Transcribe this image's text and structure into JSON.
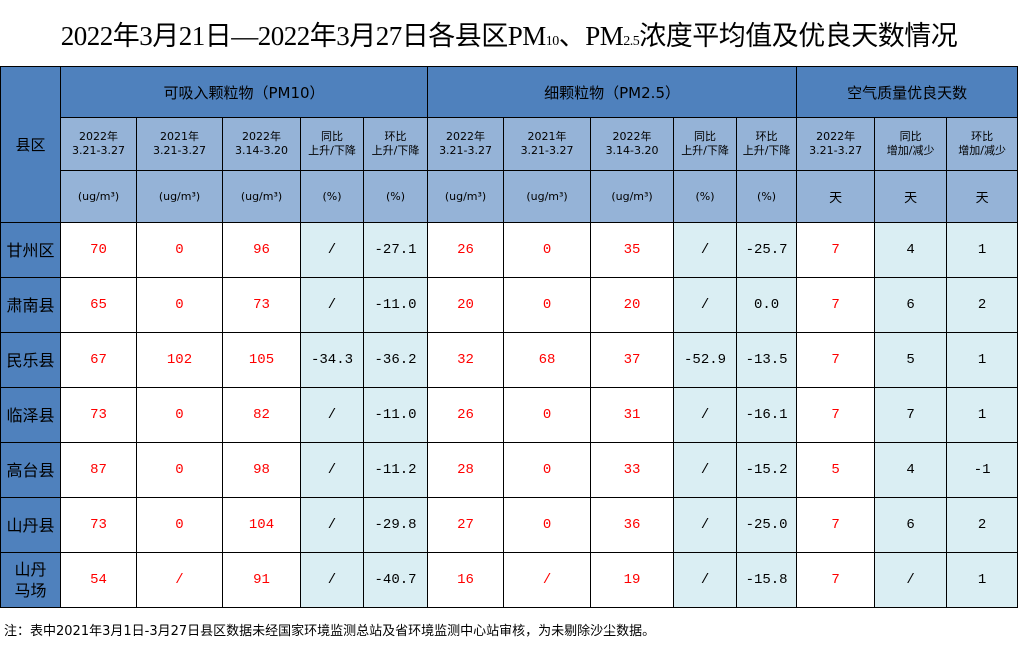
{
  "title": {
    "pre": "2022年3月21日—2022年3月27日各县区PM",
    "sub1": "10",
    "mid": "、PM",
    "sub2": "2.5",
    "post": "浓度平均值及优良天数情况"
  },
  "header": {
    "county": "县区",
    "groups": [
      "可吸入颗粒物（PM10）",
      "细颗粒物（PM2.5）",
      "空气质量优良天数"
    ],
    "columns": [
      {
        "l1": "2022年",
        "l2": "3.21-3.27",
        "unit": "(ug/m³)"
      },
      {
        "l1": "2021年",
        "l2": "3.21-3.27",
        "unit": "(ug/m³)"
      },
      {
        "l1": "2022年",
        "l2": "3.14-3.20",
        "unit": "(ug/m³)"
      },
      {
        "l1": "同比",
        "l2": "上升/下降",
        "unit": "(%)"
      },
      {
        "l1": "环比",
        "l2": "上升/下降",
        "unit": "(%)"
      },
      {
        "l1": "2022年",
        "l2": "3.21-3.27",
        "unit": "(ug/m³)"
      },
      {
        "l1": "2021年",
        "l2": "3.21-3.27",
        "unit": "(ug/m³)"
      },
      {
        "l1": "2022年",
        "l2": "3.14-3.20",
        "unit": "(ug/m³)"
      },
      {
        "l1": "同比",
        "l2": "上升/下降",
        "unit": "(%)"
      },
      {
        "l1": "环比",
        "l2": "上升/下降",
        "unit": "(%)"
      },
      {
        "l1": "2022年",
        "l2": "3.21-3.27",
        "unit": "天"
      },
      {
        "l1": "同比",
        "l2": "增加/减少",
        "unit": "天"
      },
      {
        "l1": "环比",
        "l2": "增加/减少",
        "unit": "天"
      }
    ]
  },
  "rows": [
    {
      "county": "甘州区",
      "values": [
        "70",
        "0",
        "96",
        "/",
        "-27.1",
        "26",
        "0",
        "35",
        "/",
        "-25.7",
        "7",
        "4",
        "1"
      ]
    },
    {
      "county": "肃南县",
      "values": [
        "65",
        "0",
        "73",
        "/",
        "-11.0",
        "20",
        "0",
        "20",
        "/",
        "0.0",
        "7",
        "6",
        "2"
      ]
    },
    {
      "county": "民乐县",
      "values": [
        "67",
        "102",
        "105",
        "-34.3",
        "-36.2",
        "32",
        "68",
        "37",
        "-52.9",
        "-13.5",
        "7",
        "5",
        "1"
      ]
    },
    {
      "county": "临泽县",
      "values": [
        "73",
        "0",
        "82",
        "/",
        "-11.0",
        "26",
        "0",
        "31",
        "/",
        "-16.1",
        "7",
        "7",
        "1"
      ]
    },
    {
      "county": "高台县",
      "values": [
        "87",
        "0",
        "98",
        "/",
        "-11.2",
        "28",
        "0",
        "33",
        "/",
        "-15.2",
        "5",
        "4",
        "-1"
      ]
    },
    {
      "county": "山丹县",
      "values": [
        "73",
        "0",
        "104",
        "/",
        "-29.8",
        "27",
        "0",
        "36",
        "/",
        "-25.0",
        "7",
        "6",
        "2"
      ]
    },
    {
      "county": "山丹\n马场",
      "values": [
        "54",
        "/",
        "91",
        "/",
        "-40.7",
        "16",
        "/",
        "19",
        "/",
        "-15.8",
        "7",
        "/",
        "1"
      ]
    }
  ],
  "note": "注：表中2021年3月1日-3月27日县区数据未经国家环境监测总站及省环境监测中心站审核，为未剔除沙尘数据。",
  "colors": {
    "header_dark": "#4f81bd",
    "header_light": "#95b3d7",
    "cell_light": "#daeef3",
    "value_red": "#ff0000"
  }
}
